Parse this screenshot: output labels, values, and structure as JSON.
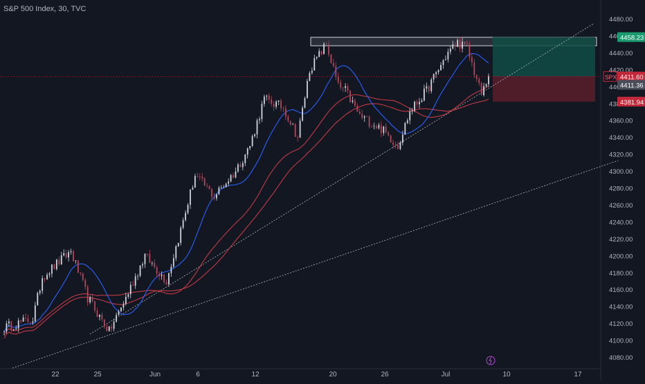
{
  "header": {
    "title": "S&P 500 Index, 30, TVC"
  },
  "symbol_badge": "SPX",
  "colors": {
    "background": "#131722",
    "up_candle": "#d1d4dc",
    "down_candle": "#b2485a",
    "ma_blue": "#2962ff",
    "ma_red": "#c23a45",
    "trendline": "#b2b5be",
    "target_zone": "#0f4c45",
    "stop_zone": "#5a1f2b",
    "resistance_box": "#d1d4dc",
    "price_tag_current": "#c2283a",
    "price_tag_target": "#1a9a6e",
    "price_tag_stop": "#c2283a",
    "price_tag_last": "#4a4e5a",
    "axis_text": "#b2b5be"
  },
  "chart_data": {
    "type": "candlestick",
    "title": "S&P 500 Index, 30, TVC",
    "interval": "30",
    "ylim": [
      4070,
      4500
    ],
    "y_ticks": [
      "4080.00",
      "4100.00",
      "4120.00",
      "4140.00",
      "4160.00",
      "4180.00",
      "4200.00",
      "4220.00",
      "4240.00",
      "4260.00",
      "4280.00",
      "4300.00",
      "4320.00",
      "4340.00",
      "4360.00",
      "4380.00",
      "4400.00",
      "4420.00",
      "4440.00",
      "4460.00",
      "4480.00"
    ],
    "x_ticks": [
      "22",
      "25",
      "Jun",
      "6",
      "12",
      "20",
      "26",
      "Jul",
      "10",
      "17"
    ],
    "price_tags": [
      {
        "label": "4458.23",
        "value": 4458.23,
        "kind": "target"
      },
      {
        "label": "4411.60",
        "value": 4411.6,
        "kind": "current"
      },
      {
        "label": "4411.36",
        "value": 4411.36,
        "kind": "last"
      },
      {
        "label": "4381.94",
        "value": 4381.94,
        "kind": "stop"
      }
    ],
    "resistance_zone": [
      4448,
      4458
    ],
    "position": {
      "entry": 4411.6,
      "target": 4458.23,
      "stop": 4381.94
    },
    "trend_path": [
      [
        4115,
        12
      ],
      [
        4125,
        4
      ],
      [
        4175,
        12
      ],
      [
        4205,
        7
      ],
      [
        4150,
        9
      ],
      [
        4110,
        7
      ],
      [
        4150,
        8
      ],
      [
        4200,
        9
      ],
      [
        4170,
        6
      ],
      [
        4230,
        6
      ],
      [
        4295,
        8
      ],
      [
        4270,
        9
      ],
      [
        4300,
        6
      ],
      [
        4330,
        6
      ],
      [
        4385,
        8
      ],
      [
        4375,
        6
      ],
      [
        4340,
        5
      ],
      [
        4420,
        7
      ],
      [
        4450,
        5
      ],
      [
        4400,
        3
      ],
      [
        4395,
        6
      ],
      [
        4365,
        9
      ],
      [
        4350,
        7
      ],
      [
        4330,
        5
      ],
      [
        4370,
        7
      ],
      [
        4395,
        9
      ],
      [
        4440,
        4
      ],
      [
        4452,
        4
      ],
      [
        4445,
        6
      ],
      [
        4390,
        3
      ],
      [
        4412,
        3
      ]
    ]
  }
}
